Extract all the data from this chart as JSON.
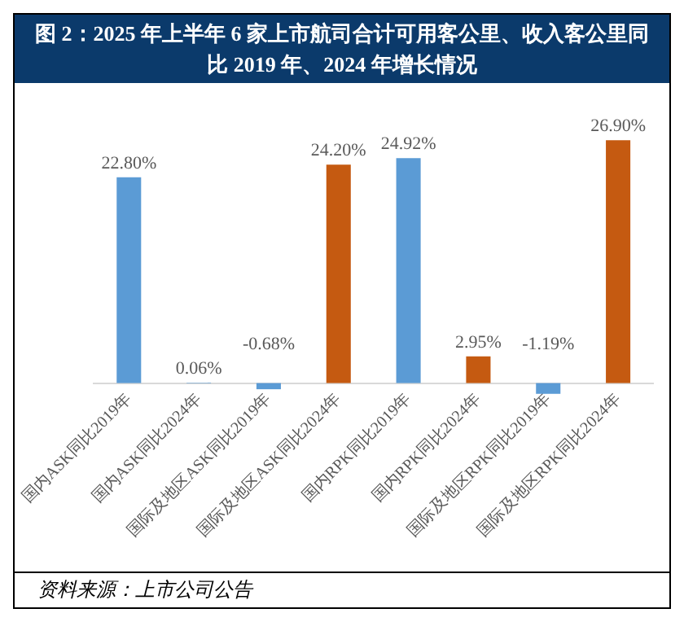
{
  "chart_data": {
    "type": "bar",
    "title": "图 2：2025 年上半年 6 家上市航司合计可用客公里、收入客公里同比 2019 年、2024 年增长情况",
    "categories": [
      "国内ASK同比2019年",
      "国内ASK同比2024年",
      "国际及地区ASK同比2019年",
      "国际及地区ASK同比2024年",
      "国内RPK同比2019年",
      "国内RPK同比2024年",
      "国际及地区RPK同比2019年",
      "国际及地区RPK同比2024年"
    ],
    "values": [
      22.8,
      0.06,
      -0.68,
      24.2,
      24.92,
      2.95,
      -1.19,
      26.9
    ],
    "value_labels": [
      "22.80%",
      "0.06%",
      "-0.68%",
      "24.20%",
      "24.92%",
      "2.95%",
      "-1.19%",
      "26.90%"
    ],
    "colors": [
      "#5b9bd5",
      "#5b9bd5",
      "#5b9bd5",
      "#c55a11",
      "#5b9bd5",
      "#c55a11",
      "#5b9bd5",
      "#c55a11"
    ],
    "grid": false,
    "legend": false,
    "tick_labels": "x",
    "annotations": [
      "资料来源：上市公司公告"
    ]
  }
}
